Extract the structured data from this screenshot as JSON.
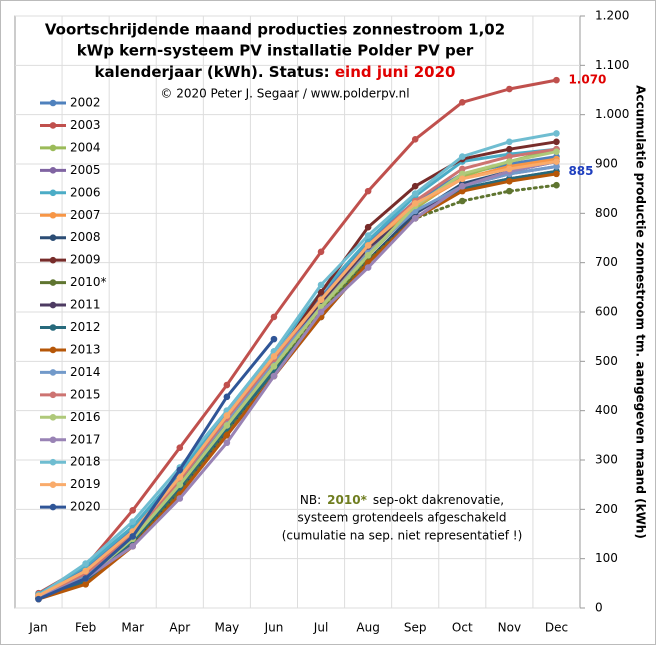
{
  "chart_data": {
    "type": "line",
    "title": [
      "Voortschrijdende maand producties zonnestroom 1,02",
      "kWp kern-systeem PV installatie Polder PV per",
      "kalenderjaar (kWh). Status: "
    ],
    "status": "eind juni 2020",
    "subtitle": "© 2020 Peter J. Segaar / www.polderpv.nl",
    "y_label": "Accumulatie productie zonnestroom tm. aangegeven maand (kWh)",
    "categories": [
      "Jan",
      "Feb",
      "Mar",
      "Apr",
      "May",
      "Jun",
      "Jul",
      "Aug",
      "Sep",
      "Oct",
      "Nov",
      "Dec"
    ],
    "ylim": [
      0,
      1200
    ],
    "yticks": [
      0,
      100,
      200,
      300,
      400,
      500,
      600,
      700,
      800,
      900,
      {
        "value": 1000,
        "label": "1.000"
      },
      {
        "value": 1100,
        "label": "1.100"
      },
      {
        "value": 1200,
        "label": "1.200"
      }
    ],
    "grid": true,
    "legend": "left",
    "note": {
      "prefix": "NB:",
      "highlight": "2010*",
      "lines": [
        "sep-okt dakrenovatie,",
        "systeem grotendeels afgeschakeld",
        "(cumulatie na sep. niet representatief !)"
      ]
    },
    "end_labels": [
      {
        "label": "1.070",
        "value": 1070,
        "color": "#e00000"
      },
      {
        "label": "885",
        "value": 885,
        "color": "#1f3fbf"
      }
    ],
    "series": [
      {
        "name": "2002",
        "color": "#4f81bd",
        "values": [
          25,
          80,
          160,
          270,
          395,
          510,
          630,
          740,
          825,
          880,
          900,
          915
        ]
      },
      {
        "name": "2003",
        "color": "#c0504d",
        "values": [
          30,
          85,
          198,
          325,
          452,
          590,
          722,
          845,
          950,
          1025,
          1052,
          1070
        ]
      },
      {
        "name": "2004",
        "color": "#9bbb59",
        "values": [
          22,
          60,
          140,
          250,
          365,
          490,
          600,
          715,
          810,
          875,
          905,
          930
        ]
      },
      {
        "name": "2005",
        "color": "#8064a2",
        "values": [
          20,
          55,
          135,
          235,
          350,
          470,
          590,
          700,
          800,
          855,
          880,
          895
        ]
      },
      {
        "name": "2006",
        "color": "#4bacc6",
        "values": [
          28,
          85,
          165,
          275,
          400,
          520,
          640,
          745,
          835,
          905,
          920,
          930
        ]
      },
      {
        "name": "2007",
        "color": "#f79646",
        "values": [
          22,
          65,
          145,
          255,
          375,
          495,
          615,
          725,
          815,
          870,
          895,
          910
        ]
      },
      {
        "name": "2008",
        "color": "#2c4d75",
        "values": [
          20,
          55,
          130,
          240,
          360,
          480,
          595,
          705,
          800,
          860,
          885,
          905
        ]
      },
      {
        "name": "2009",
        "color": "#772c2a",
        "values": [
          20,
          50,
          130,
          250,
          380,
          500,
          640,
          772,
          855,
          910,
          930,
          945
        ]
      },
      {
        "name": "2010*",
        "color": "#5f7530",
        "dash": "dotted",
        "values": [
          20,
          50,
          130,
          240,
          360,
          480,
          600,
          705,
          790,
          825,
          845,
          857
        ]
      },
      {
        "name": "2011",
        "color": "#4d3b62",
        "values": [
          25,
          70,
          150,
          265,
          385,
          505,
          620,
          730,
          805,
          850,
          870,
          885
        ]
      },
      {
        "name": "2012",
        "color": "#276a7c",
        "values": [
          20,
          55,
          135,
          245,
          365,
          480,
          590,
          700,
          790,
          850,
          870,
          885
        ]
      },
      {
        "name": "2013",
        "color": "#b65708",
        "values": [
          18,
          48,
          125,
          230,
          350,
          470,
          590,
          700,
          790,
          845,
          865,
          880
        ]
      },
      {
        "name": "2014",
        "color": "#729aca",
        "values": [
          22,
          65,
          150,
          260,
          380,
          500,
          610,
          720,
          805,
          855,
          880,
          895
        ]
      },
      {
        "name": "2015",
        "color": "#cd7371",
        "values": [
          25,
          70,
          150,
          260,
          385,
          505,
          625,
          735,
          825,
          890,
          915,
          930
        ]
      },
      {
        "name": "2016",
        "color": "#afc97a",
        "values": [
          22,
          60,
          140,
          250,
          370,
          490,
          610,
          715,
          815,
          880,
          905,
          925
        ]
      },
      {
        "name": "2017",
        "color": "#9983b5",
        "values": [
          22,
          60,
          125,
          222,
          335,
          470,
          600,
          690,
          790,
          855,
          885,
          905
        ]
      },
      {
        "name": "2018",
        "color": "#6fbdd1",
        "values": [
          25,
          90,
          175,
          285,
          400,
          520,
          655,
          755,
          840,
          915,
          945,
          962
        ]
      },
      {
        "name": "2019",
        "color": "#f9ab6b",
        "values": [
          25,
          75,
          155,
          265,
          390,
          510,
          625,
          735,
          820,
          870,
          890,
          905
        ]
      },
      {
        "name": "2020",
        "color": "#2f5597",
        "values": [
          18,
          60,
          145,
          280,
          428,
          545,
          null,
          null,
          null,
          null,
          null,
          null
        ]
      }
    ]
  }
}
